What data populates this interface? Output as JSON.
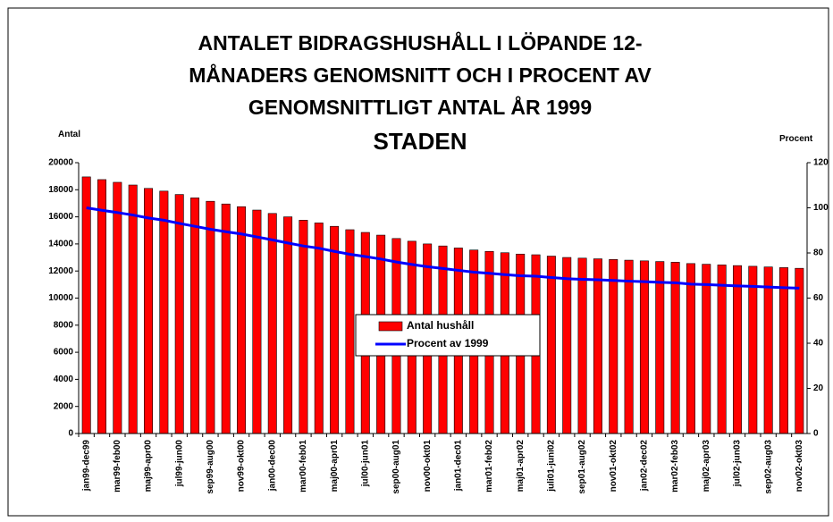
{
  "chart_data": {
    "type": "bar_line",
    "title_lines": [
      "ANTALET BIDRAGSHUSHÅLL I LÖPANDE 12-",
      "MÅNADERS GENOMSNITT OCH I PROCENT AV",
      "GENOMSNITTLIGT ANTAL ÅR 1999"
    ],
    "subtitle": "STADEN",
    "y_label": "Antal",
    "y2_label": "Procent",
    "categories": [
      "jan99-dec99",
      null,
      "mar99-feb00",
      null,
      "maj99-apr00",
      null,
      "jul99-jun00",
      null,
      "sep99-aug00",
      null,
      "nov99-okt00",
      null,
      "jan00-dec00",
      null,
      "mar00-feb01",
      null,
      "maj00-apr01",
      null,
      "jul00-jun01",
      null,
      "sep00-aug01",
      null,
      "nov00-okt01",
      null,
      "jan01-dec01",
      null,
      "mar01-feb02",
      null,
      "maj01-apr02",
      null,
      "juli01-juni02",
      null,
      "sep01-aug02",
      null,
      "nov01-okt02",
      null,
      "jan02-dec02",
      null,
      "mar02-feb03",
      null,
      "maj02-apr03",
      null,
      "jul02-jun03",
      null,
      "sep02-aug03",
      null,
      "nov02-okt03"
    ],
    "series": [
      {
        "name": "Antal hushåll",
        "color": "#ff0000",
        "kind": "bar",
        "values": [
          18950,
          18750,
          18550,
          18350,
          18100,
          17900,
          17650,
          17400,
          17150,
          16950,
          16750,
          16500,
          16250,
          16000,
          15750,
          15550,
          15300,
          15050,
          14850,
          14650,
          14400,
          14200,
          14000,
          13850,
          13700,
          13550,
          13450,
          13350,
          13250,
          13200,
          13100,
          13000,
          12950,
          12900,
          12850,
          12800,
          12750,
          12700,
          12650,
          12550,
          12500,
          12450,
          12400,
          12350,
          12300,
          12250,
          12200
        ]
      },
      {
        "name": "Procent av 1999",
        "color": "#0000ff",
        "kind": "line",
        "axis": "y2",
        "values": [
          100,
          98.9,
          97.9,
          96.8,
          95.5,
          94.5,
          93.1,
          91.8,
          90.5,
          89.4,
          88.4,
          87.1,
          85.8,
          84.4,
          83.1,
          82.1,
          80.7,
          79.4,
          78.4,
          77.3,
          76.0,
          74.9,
          73.9,
          73.1,
          72.3,
          71.5,
          71.0,
          70.4,
          69.9,
          69.7,
          69.1,
          68.6,
          68.3,
          68.1,
          67.8,
          67.5,
          67.3,
          67.0,
          66.8,
          66.2,
          66.0,
          65.7,
          65.4,
          65.2,
          64.9,
          64.6,
          64.4
        ]
      }
    ],
    "ylim": [
      0,
      20000
    ],
    "yticks": [
      0,
      2000,
      4000,
      6000,
      8000,
      10000,
      12000,
      14000,
      16000,
      18000,
      20000
    ],
    "y2lim": [
      0,
      120
    ],
    "y2ticks": [
      0,
      20,
      40,
      60,
      80,
      100,
      120
    ],
    "legend": "center"
  }
}
